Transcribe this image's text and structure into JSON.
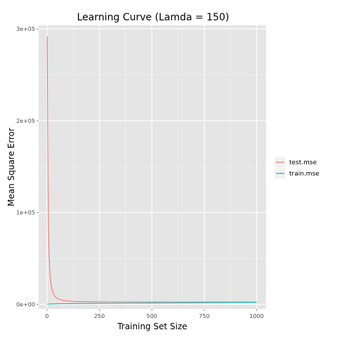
{
  "chart_data": {
    "type": "line",
    "title": "Learning Curve (Lamda = 150)",
    "xlabel": "Training Set Size",
    "ylabel": "Mean Square Error",
    "xlim": [
      -40,
      1045
    ],
    "ylim": [
      -5000,
      304000
    ],
    "x_ticks": [
      0,
      250,
      500,
      750,
      1000
    ],
    "x_tick_labels": [
      "0",
      "250",
      "500",
      "750",
      "1000"
    ],
    "y_ticks": [
      0,
      100000,
      200000,
      300000
    ],
    "y_tick_labels": [
      "0e+00",
      "1e+05",
      "2e+05",
      "3e+05"
    ],
    "grid": true,
    "legend_position": "right",
    "series": [
      {
        "name": "test.mse",
        "color": "#F8766D",
        "x": [
          1,
          2,
          3,
          5,
          7,
          10,
          13,
          16,
          20,
          25,
          30,
          40,
          50,
          60,
          80,
          100,
          125,
          150,
          200,
          250,
          300,
          400,
          500,
          600,
          700,
          800,
          900,
          1000
        ],
        "y": [
          292000,
          250000,
          195000,
          130000,
          85000,
          55000,
          38000,
          29000,
          21000,
          15000,
          11500,
          8000,
          6300,
          5300,
          4200,
          3600,
          3200,
          3000,
          2800,
          2700,
          2650,
          2600,
          2580,
          2560,
          2550,
          2540,
          2530,
          2520
        ]
      },
      {
        "name": "train.mse",
        "color": "#00BFC4",
        "x": [
          1,
          3,
          5,
          10,
          20,
          40,
          60,
          100,
          150,
          200,
          300,
          400,
          500,
          600,
          700,
          800,
          900,
          1000
        ],
        "y": [
          0,
          200,
          300,
          400,
          500,
          600,
          700,
          800,
          900,
          1000,
          1150,
          1300,
          1450,
          1600,
          1750,
          1900,
          2050,
          2200
        ]
      }
    ]
  }
}
